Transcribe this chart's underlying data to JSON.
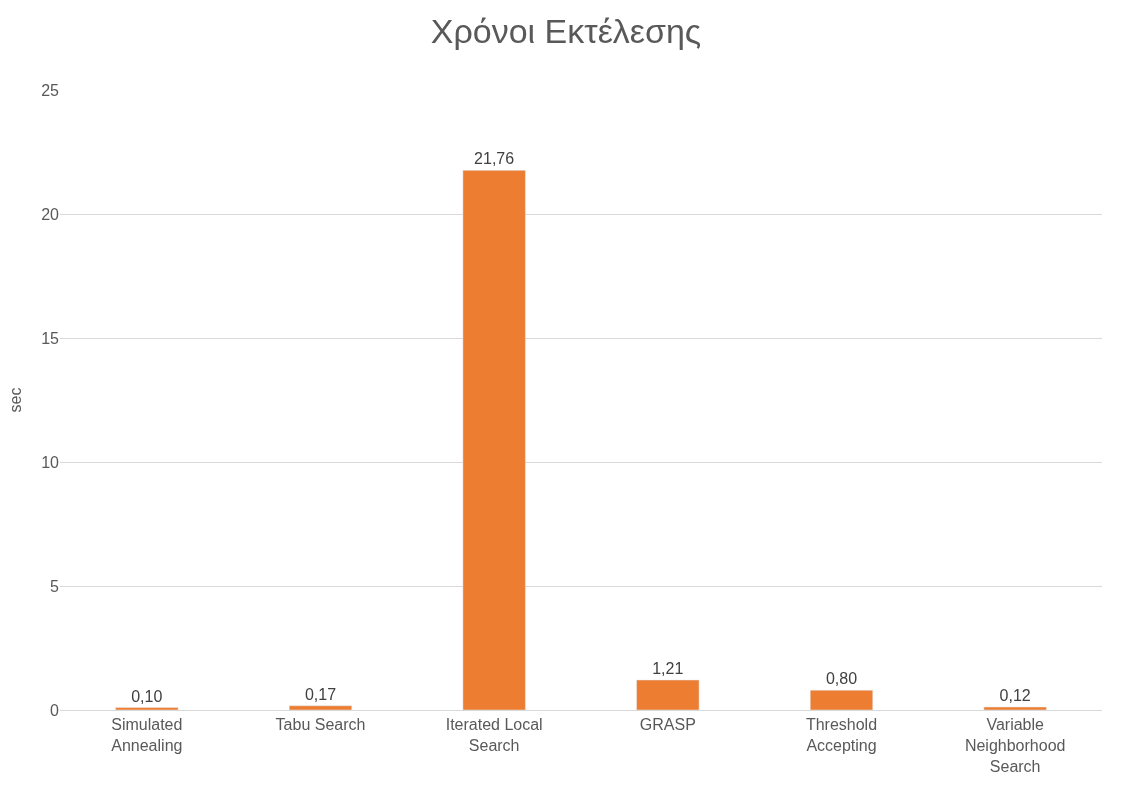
{
  "chart_data": {
    "type": "bar",
    "title": "Χρόνοι Εκτέλεσης",
    "ylabel": "sec",
    "categories": [
      "Simulated Annealing",
      "Tabu Search",
      "Iterated Local Search",
      "GRASP",
      "Threshold Accepting",
      "Variable Neighborhood Search"
    ],
    "values": [
      0.1,
      0.17,
      21.76,
      1.21,
      0.8,
      0.12
    ],
    "value_labels": [
      "0,10",
      "0,17",
      "21,76",
      "1,21",
      "0,80",
      "0,12"
    ],
    "color": "#ed7d31",
    "ylim": [
      0,
      25
    ],
    "yticks": [
      0,
      5,
      10,
      15,
      20,
      25
    ],
    "grid": "y",
    "legend": false
  }
}
